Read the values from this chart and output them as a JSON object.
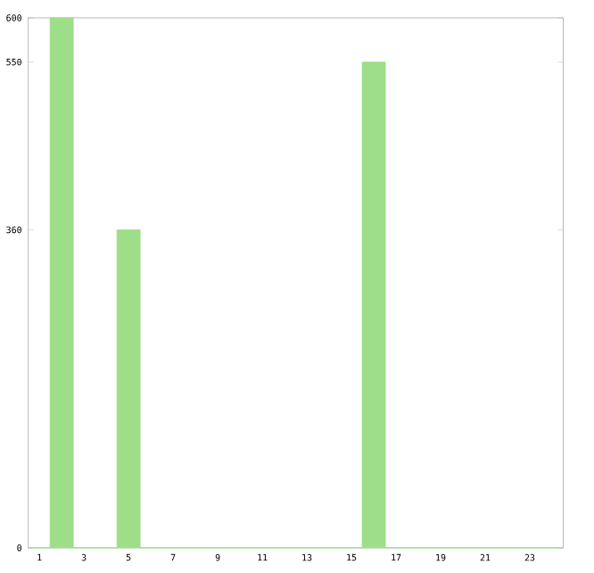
{
  "chart_data": {
    "type": "bar",
    "categories": [
      "1",
      null,
      "3",
      null,
      "5",
      null,
      "7",
      null,
      "9",
      null,
      "11",
      null,
      "13",
      null,
      "15",
      null,
      "17",
      null,
      "19",
      null,
      "21",
      null,
      "23",
      null
    ],
    "values": [
      0,
      600,
      0,
      0,
      360,
      0,
      0,
      0,
      0,
      0,
      0,
      0,
      0,
      0,
      0,
      550,
      0,
      0,
      0,
      0,
      0,
      0,
      0,
      0
    ],
    "color": "#9ede88",
    "ylim": [
      0,
      600
    ],
    "yticks": [
      0,
      360,
      550,
      600
    ],
    "grid": false
  }
}
